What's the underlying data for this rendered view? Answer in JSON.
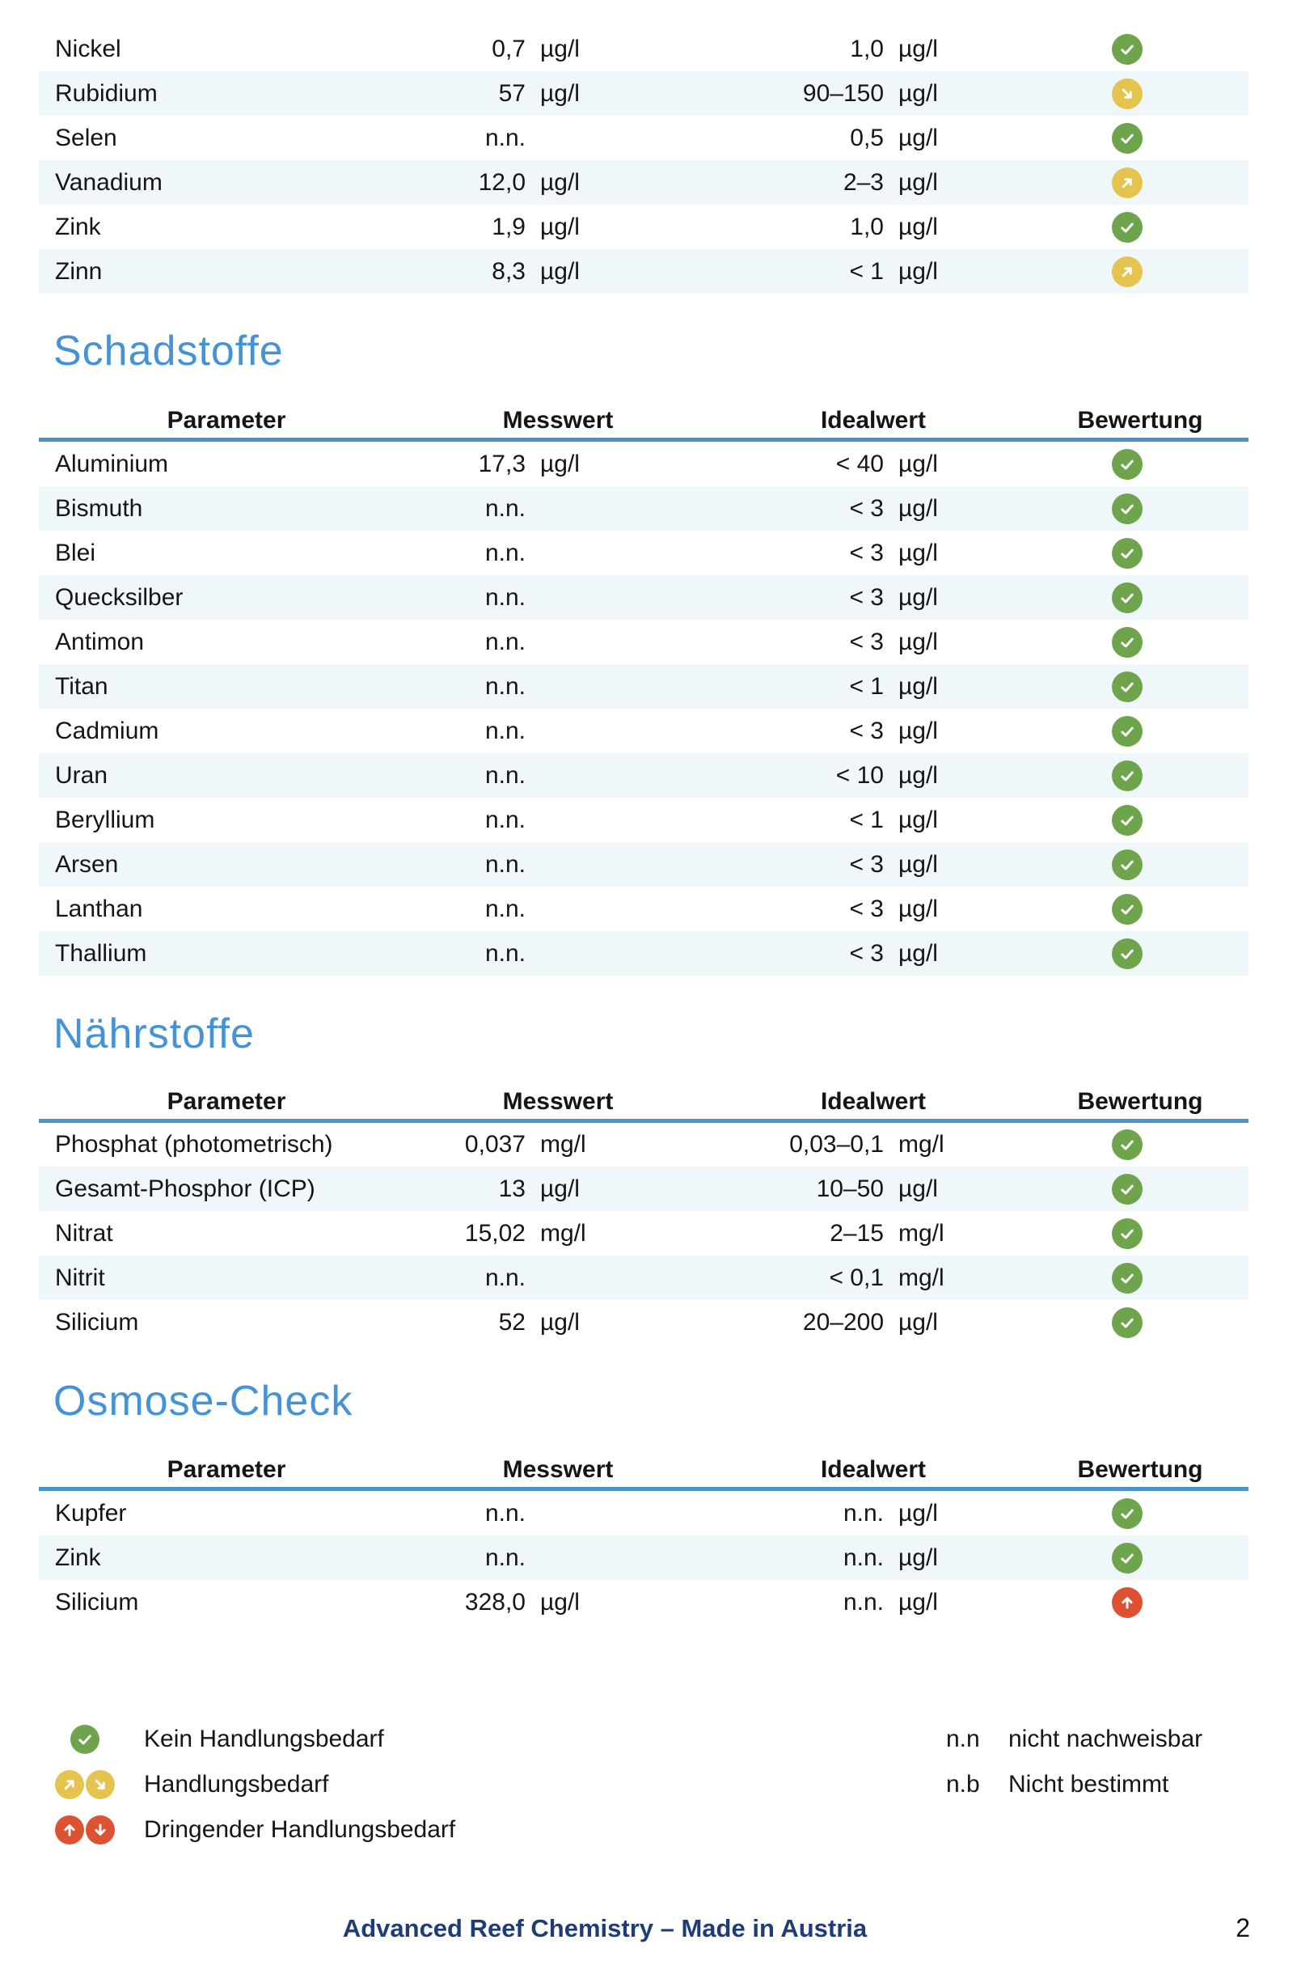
{
  "colors": {
    "accent_blue": "#4493D6",
    "rule_blue": "#4A94CE",
    "row_alt_bg": "#F0F7FB",
    "ok_green": "#6EA44C",
    "warn_yellow": "#E4C44F",
    "alert_red": "#DC5233",
    "footer_navy": "#1E3C78",
    "text_black": "#151515"
  },
  "columns": {
    "parameter": "Parameter",
    "messwert": "Messwert",
    "idealwert": "Idealwert",
    "bewertung": "Bewertung"
  },
  "tables": {
    "continuation": {
      "rows": [
        {
          "parameter": "Nickel",
          "messwert": "0,7",
          "messwert_unit": "µg/l",
          "idealwert": "1,0",
          "idealwert_unit": "µg/l",
          "bewertung": "ok"
        },
        {
          "parameter": "Rubidium",
          "messwert": "57",
          "messwert_unit": "µg/l",
          "idealwert": "90–150",
          "idealwert_unit": "µg/l",
          "bewertung": "low"
        },
        {
          "parameter": "Selen",
          "messwert": "n.n.",
          "messwert_unit": "",
          "idealwert": "0,5",
          "idealwert_unit": "µg/l",
          "bewertung": "ok"
        },
        {
          "parameter": "Vanadium",
          "messwert": "12,0",
          "messwert_unit": "µg/l",
          "idealwert": "2–3",
          "idealwert_unit": "µg/l",
          "bewertung": "high"
        },
        {
          "parameter": "Zink",
          "messwert": "1,9",
          "messwert_unit": "µg/l",
          "idealwert": "1,0",
          "idealwert_unit": "µg/l",
          "bewertung": "ok"
        },
        {
          "parameter": "Zinn",
          "messwert": "8,3",
          "messwert_unit": "µg/l",
          "idealwert": "< 1",
          "idealwert_unit": "µg/l",
          "bewertung": "high"
        }
      ]
    },
    "schadstoffe": {
      "title": "Schadstoffe",
      "rows": [
        {
          "parameter": "Aluminium",
          "messwert": "17,3",
          "messwert_unit": "µg/l",
          "idealwert": "< 40",
          "idealwert_unit": "µg/l",
          "bewertung": "ok"
        },
        {
          "parameter": "Bismuth",
          "messwert": "n.n.",
          "messwert_unit": "",
          "idealwert": "< 3",
          "idealwert_unit": "µg/l",
          "bewertung": "ok"
        },
        {
          "parameter": "Blei",
          "messwert": "n.n.",
          "messwert_unit": "",
          "idealwert": "< 3",
          "idealwert_unit": "µg/l",
          "bewertung": "ok"
        },
        {
          "parameter": "Quecksilber",
          "messwert": "n.n.",
          "messwert_unit": "",
          "idealwert": "< 3",
          "idealwert_unit": "µg/l",
          "bewertung": "ok"
        },
        {
          "parameter": "Antimon",
          "messwert": "n.n.",
          "messwert_unit": "",
          "idealwert": "< 3",
          "idealwert_unit": "µg/l",
          "bewertung": "ok"
        },
        {
          "parameter": "Titan",
          "messwert": "n.n.",
          "messwert_unit": "",
          "idealwert": "< 1",
          "idealwert_unit": "µg/l",
          "bewertung": "ok"
        },
        {
          "parameter": "Cadmium",
          "messwert": "n.n.",
          "messwert_unit": "",
          "idealwert": "< 3",
          "idealwert_unit": "µg/l",
          "bewertung": "ok"
        },
        {
          "parameter": "Uran",
          "messwert": "n.n.",
          "messwert_unit": "",
          "idealwert": "< 10",
          "idealwert_unit": "µg/l",
          "bewertung": "ok"
        },
        {
          "parameter": "Beryllium",
          "messwert": "n.n.",
          "messwert_unit": "",
          "idealwert": "< 1",
          "idealwert_unit": "µg/l",
          "bewertung": "ok"
        },
        {
          "parameter": "Arsen",
          "messwert": "n.n.",
          "messwert_unit": "",
          "idealwert": "< 3",
          "idealwert_unit": "µg/l",
          "bewertung": "ok"
        },
        {
          "parameter": "Lanthan",
          "messwert": "n.n.",
          "messwert_unit": "",
          "idealwert": "< 3",
          "idealwert_unit": "µg/l",
          "bewertung": "ok"
        },
        {
          "parameter": "Thallium",
          "messwert": "n.n.",
          "messwert_unit": "",
          "idealwert": "< 3",
          "idealwert_unit": "µg/l",
          "bewertung": "ok"
        }
      ]
    },
    "naehrstoffe": {
      "title": "Nährstoffe",
      "rows": [
        {
          "parameter": "Phosphat (photometrisch)",
          "messwert": "0,037",
          "messwert_unit": "mg/l",
          "idealwert": "0,03–0,1",
          "idealwert_unit": "mg/l",
          "bewertung": "ok"
        },
        {
          "parameter": "Gesamt-Phosphor (ICP)",
          "messwert": "13",
          "messwert_unit": "µg/l",
          "idealwert": "10–50",
          "idealwert_unit": "µg/l",
          "bewertung": "ok"
        },
        {
          "parameter": "Nitrat",
          "messwert": "15,02",
          "messwert_unit": "mg/l",
          "idealwert": "2–15",
          "idealwert_unit": "mg/l",
          "bewertung": "ok"
        },
        {
          "parameter": "Nitrit",
          "messwert": "n.n.",
          "messwert_unit": "",
          "idealwert": "< 0,1",
          "idealwert_unit": "mg/l",
          "bewertung": "ok"
        },
        {
          "parameter": "Silicium",
          "messwert": "52",
          "messwert_unit": "µg/l",
          "idealwert": "20–200",
          "idealwert_unit": "µg/l",
          "bewertung": "ok"
        }
      ]
    },
    "osmose": {
      "title": "Osmose-Check",
      "rows": [
        {
          "parameter": "Kupfer",
          "messwert": "n.n.",
          "messwert_unit": "",
          "idealwert": "n.n.",
          "idealwert_unit": "µg/l",
          "bewertung": "ok"
        },
        {
          "parameter": "Zink",
          "messwert": "n.n.",
          "messwert_unit": "",
          "idealwert": "n.n.",
          "idealwert_unit": "µg/l",
          "bewertung": "ok"
        },
        {
          "parameter": "Silicium",
          "messwert": "328,0",
          "messwert_unit": "µg/l",
          "idealwert": "n.n.",
          "idealwert_unit": "µg/l",
          "bewertung": "critical-high"
        }
      ]
    }
  },
  "legend": {
    "items": [
      {
        "label": "Kein Handlungsbedarf",
        "icons": [
          {
            "glyph": "check",
            "color": "ok_green"
          }
        ]
      },
      {
        "label": "Handlungsbedarf",
        "icons": [
          {
            "glyph": "arrow-up-right",
            "color": "warn_yellow"
          },
          {
            "glyph": "arrow-down-right",
            "color": "warn_yellow"
          }
        ]
      },
      {
        "label": "Dringender Handlungsbedarf",
        "icons": [
          {
            "glyph": "arrow-up",
            "color": "alert_red"
          },
          {
            "glyph": "arrow-down",
            "color": "alert_red"
          }
        ]
      }
    ],
    "abbreviations": [
      {
        "abbr": "n.n",
        "text": "nicht nachweisbar"
      },
      {
        "abbr": "n.b",
        "text": "Nicht bestimmt"
      }
    ]
  },
  "footer": {
    "text": "Advanced Reef Chemistry – Made in Austria",
    "page": "2"
  }
}
